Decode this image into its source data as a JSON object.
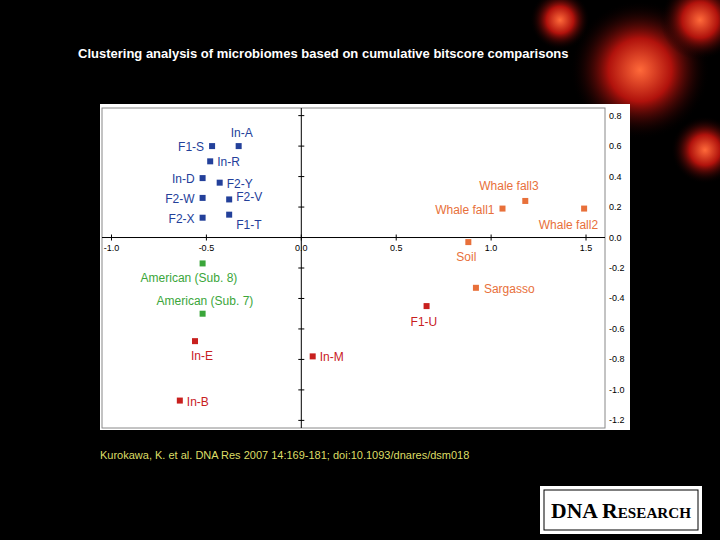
{
  "chart_data": {
    "type": "scatter",
    "title": "Clustering analysis of microbiomes based on cumulative bitscore comparisons",
    "xlim": [
      -1.05,
      1.6
    ],
    "ylim": [
      -1.25,
      0.85
    ],
    "xticks": [
      {
        "value": -1,
        "label": "-1.0"
      },
      -0.5,
      {
        "value": 0,
        "label": "0.0"
      },
      0.5,
      {
        "value": 1,
        "label": "1.0"
      },
      1.5
    ],
    "yticks": [
      0.8,
      0.6,
      0.4,
      0.2,
      {
        "value": 0,
        "label": "0.0"
      },
      -0.2,
      -0.4,
      -0.6,
      -0.8,
      {
        "value": -1,
        "label": "-1.0"
      },
      -1.2
    ],
    "marker": "square",
    "points": [
      {
        "label": "F1-S",
        "x": -0.47,
        "y": 0.6,
        "color": "#23409a"
      },
      {
        "label": "In-A",
        "x": -0.33,
        "y": 0.6,
        "color": "#23409a"
      },
      {
        "label": "In-R",
        "x": -0.48,
        "y": 0.5,
        "color": "#23409a"
      },
      {
        "label": "In-D",
        "x": -0.52,
        "y": 0.39,
        "color": "#23409a"
      },
      {
        "label": "F2-Y",
        "x": -0.43,
        "y": 0.36,
        "color": "#23409a"
      },
      {
        "label": "F2-W",
        "x": -0.52,
        "y": 0.26,
        "color": "#23409a"
      },
      {
        "label": "F2-V",
        "x": -0.38,
        "y": 0.25,
        "color": "#23409a"
      },
      {
        "label": "F2-X",
        "x": -0.52,
        "y": 0.13,
        "color": "#23409a"
      },
      {
        "label": "F1-T",
        "x": -0.38,
        "y": 0.15,
        "color": "#23409a"
      },
      {
        "label": "American (Sub. 8)",
        "x": -0.52,
        "y": -0.17,
        "color": "#3aa63a"
      },
      {
        "label": "American (Sub. 7)",
        "x": -0.52,
        "y": -0.5,
        "color": "#3aa63a"
      },
      {
        "label": "In-E",
        "x": -0.56,
        "y": -0.68,
        "color": "#c8201e"
      },
      {
        "label": "In-B",
        "x": -0.64,
        "y": -1.07,
        "color": "#c8201e"
      },
      {
        "label": "In-M",
        "x": 0.06,
        "y": -0.78,
        "color": "#c8201e"
      },
      {
        "label": "F1-U",
        "x": 0.66,
        "y": -0.45,
        "color": "#c8201e"
      },
      {
        "label": "Soil",
        "x": 0.88,
        "y": -0.03,
        "color": "#e8703a"
      },
      {
        "label": "Sargasso",
        "x": 0.92,
        "y": -0.33,
        "color": "#e8703a"
      },
      {
        "label": "Whale fall1",
        "x": 1.06,
        "y": 0.19,
        "color": "#e8703a"
      },
      {
        "label": "Whale fall3",
        "x": 1.18,
        "y": 0.24,
        "color": "#e8703a"
      },
      {
        "label": "Whale fall2",
        "x": 1.49,
        "y": 0.19,
        "color": "#e8703a"
      }
    ]
  },
  "citation": "Kurokawa, K. et al. DNA Res 2007 14:169-181; doi:10.1093/dnares/dsm018",
  "logo": "DNA Research"
}
